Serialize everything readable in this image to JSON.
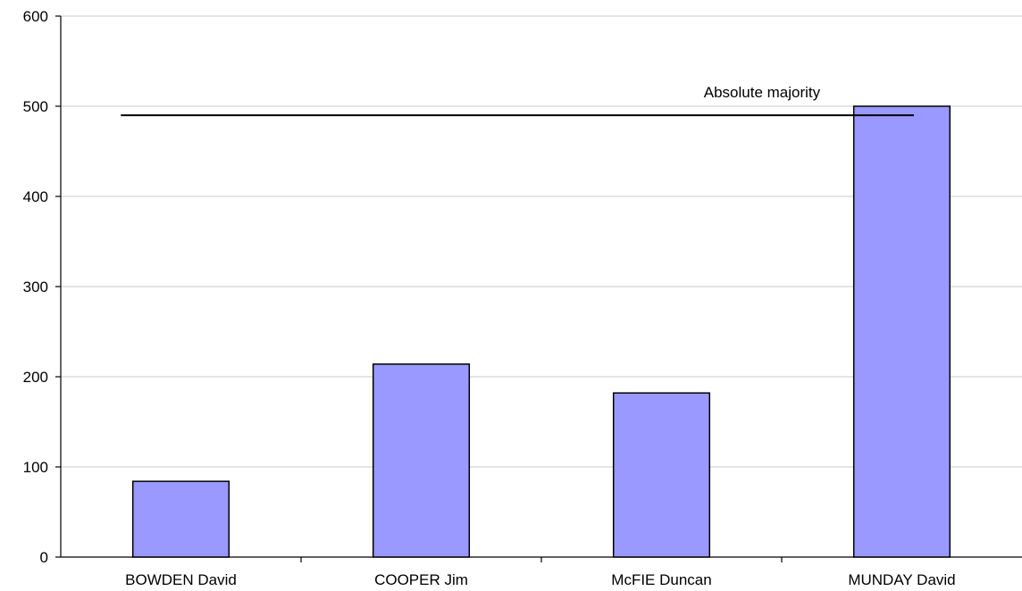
{
  "chart_data": {
    "type": "bar",
    "title": "",
    "xlabel": "",
    "ylabel": "",
    "categories": [
      "BOWDEN David",
      "COOPER Jim",
      "McFIE Duncan",
      "MUNDAY David"
    ],
    "values": [
      84,
      214,
      182,
      500
    ],
    "ylim": [
      0,
      600
    ],
    "yticks": [
      0,
      100,
      200,
      300,
      400,
      500,
      600
    ],
    "grid": true,
    "legend": "none",
    "bar_color": "#9999ff",
    "bar_edge_color": "#000000",
    "reference_line": {
      "label": "Absolute majority",
      "value": 490,
      "from_category": 0,
      "to_category": 3
    }
  }
}
